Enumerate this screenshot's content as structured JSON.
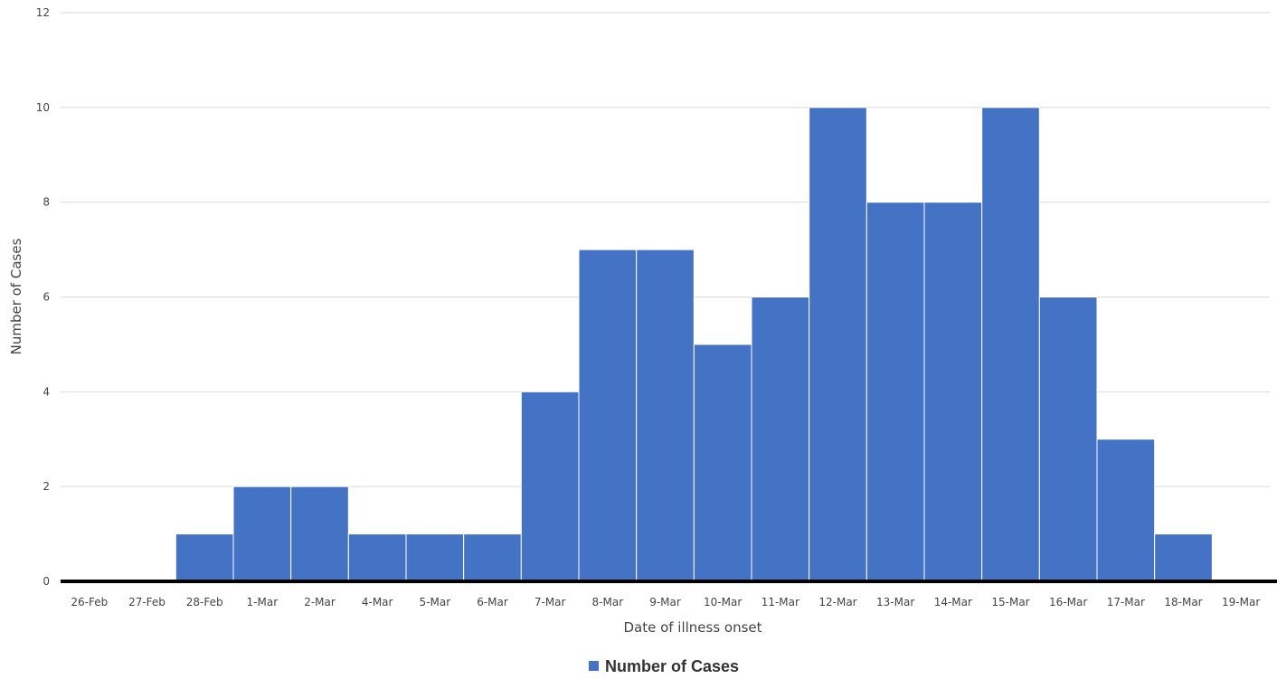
{
  "chart_data": {
    "type": "bar",
    "categories": [
      "26-Feb",
      "27-Feb",
      "28-Feb",
      "1-Mar",
      "2-Mar",
      "4-Mar",
      "5-Mar",
      "6-Mar",
      "7-Mar",
      "8-Mar",
      "9-Mar",
      "10-Mar",
      "11-Mar",
      "12-Mar",
      "13-Mar",
      "14-Mar",
      "15-Mar",
      "16-Mar",
      "17-Mar",
      "18-Mar",
      "19-Mar"
    ],
    "series": [
      {
        "name": "Number of Cases",
        "values": [
          0,
          0,
          1,
          2,
          2,
          1,
          1,
          1,
          4,
          7,
          7,
          5,
          6,
          10,
          8,
          8,
          10,
          6,
          3,
          1,
          0
        ]
      }
    ],
    "xlabel": "Date of illness onset",
    "ylabel": "Number of Cases",
    "ylim": [
      0,
      12
    ],
    "yticks": [
      0,
      2,
      4,
      6,
      8,
      10,
      12
    ],
    "grid": true,
    "legend_position": "bottom-center",
    "bar_color": "#4472C4",
    "grid_color": "#d9d9d9",
    "axis_color": "#000000"
  }
}
